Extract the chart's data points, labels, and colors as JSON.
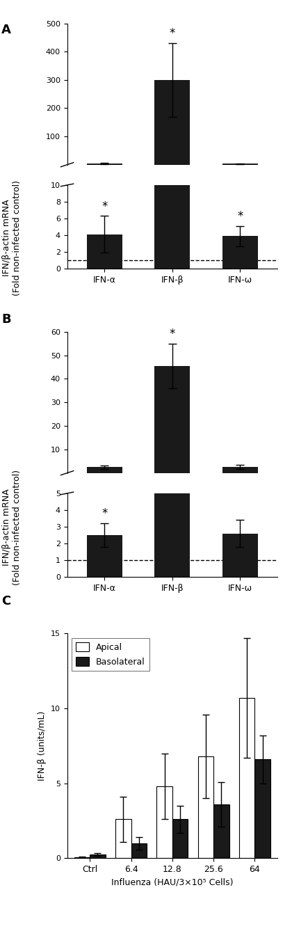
{
  "panel_A": {
    "categories": [
      "IFN-α",
      "IFN-β",
      "IFN-ω"
    ],
    "values": [
      4.1,
      300,
      3.9
    ],
    "errors": [
      2.2,
      130,
      1.2
    ],
    "star": [
      true,
      true,
      true
    ],
    "dashed_line": 1,
    "upper_yticks": [
      100,
      200,
      300,
      400,
      500
    ],
    "lower_yticks": [
      0,
      2,
      4,
      6,
      8,
      10
    ],
    "lower_ylim": [
      0,
      10
    ],
    "upper_ylim": [
      0,
      500
    ],
    "break_at": 10,
    "ylabel": "IFN/β-actin mRNA\n(Fold non-infected control)"
  },
  "panel_B": {
    "categories": [
      "IFN-α",
      "IFN-β",
      "IFN-ω"
    ],
    "values": [
      2.5,
      45.5,
      2.6
    ],
    "errors": [
      0.7,
      9.5,
      0.8
    ],
    "star": [
      true,
      true,
      false
    ],
    "dashed_line": 1,
    "upper_yticks": [
      10,
      20,
      30,
      40,
      50,
      60
    ],
    "lower_yticks": [
      0,
      1,
      2,
      3,
      4,
      5
    ],
    "lower_ylim": [
      0,
      5
    ],
    "upper_ylim": [
      0,
      60
    ],
    "break_at": 5,
    "ylabel": "IFN/β-actin mRNA\n(Fold non-infected control)"
  },
  "panel_C": {
    "categories": [
      "Ctrl",
      "6.4",
      "12.8",
      "25.6",
      "64"
    ],
    "apical_values": [
      0.05,
      2.6,
      4.8,
      6.8,
      10.7
    ],
    "apical_errors": [
      0.05,
      1.5,
      2.2,
      2.8,
      4.0
    ],
    "basolateral_values": [
      0.25,
      1.0,
      2.6,
      3.6,
      6.6
    ],
    "basolateral_errors": [
      0.1,
      0.4,
      0.9,
      1.5,
      1.6
    ],
    "ylim": [
      0,
      15
    ],
    "yticks": [
      0,
      5,
      10,
      15
    ],
    "ylabel": "IFN-β (units/mL)",
    "xlabel": "Influenza (HAU/3×10⁵ Cells)"
  },
  "bar_color": "#1a1a1a",
  "background_color": "#ffffff",
  "label_fontsize": 9,
  "tick_fontsize": 8,
  "bar_width": 0.52
}
